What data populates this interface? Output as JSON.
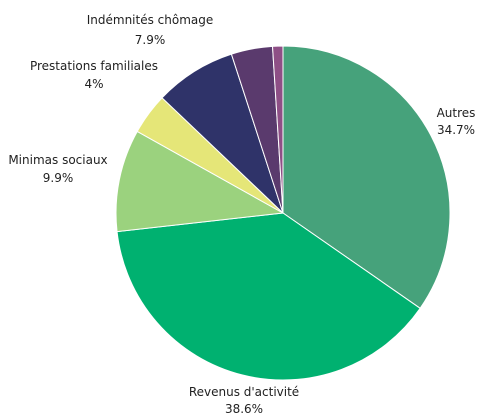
{
  "chart_data": {
    "type": "pie",
    "title": "",
    "slices": [
      {
        "label": "Autres",
        "value": 34.7,
        "value_label": "34.7%",
        "color": "#46a27b"
      },
      {
        "label": "Revenus d'activité",
        "value": 38.6,
        "value_label": "38.6%",
        "color": "#00b170"
      },
      {
        "label": "Minimas sociaux",
        "value": 9.9,
        "value_label": "9.9%",
        "color": "#9bd27e"
      },
      {
        "label": "Prestations familiales",
        "value": 4,
        "value_label": "4%",
        "color": "#e5e678"
      },
      {
        "label": "Indémnités chômage",
        "value": 7.9,
        "value_label": "7.9%",
        "color": "#2f3369"
      },
      {
        "label": "",
        "value": 4.0,
        "value_label": "",
        "color": "#5a3a6d"
      },
      {
        "label": "",
        "value": 1.0,
        "value_label": "",
        "color": "#8e4f86"
      }
    ]
  }
}
